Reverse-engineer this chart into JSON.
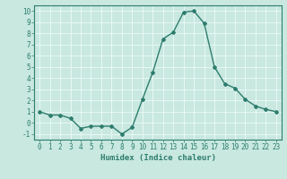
{
  "x": [
    0,
    1,
    2,
    3,
    4,
    5,
    6,
    7,
    8,
    9,
    10,
    11,
    12,
    13,
    14,
    15,
    16,
    17,
    18,
    19,
    20,
    21,
    22,
    23
  ],
  "y": [
    1,
    0.7,
    0.7,
    0.4,
    -0.5,
    -0.3,
    -0.3,
    -0.3,
    -1.0,
    -0.4,
    2.1,
    4.5,
    7.5,
    8.1,
    9.9,
    10.0,
    8.9,
    5.0,
    3.5,
    3.1,
    2.1,
    1.5,
    1.2,
    1.0
  ],
  "line_color": "#2e7d6e",
  "marker": "D",
  "marker_size": 2,
  "bg_color": "#c8e8e0",
  "grid_color": "#e8f8f4",
  "xlabel": "Humidex (Indice chaleur)",
  "ylim": [
    -1.5,
    10.5
  ],
  "xlim": [
    -0.5,
    23.5
  ],
  "yticks": [
    -1,
    0,
    1,
    2,
    3,
    4,
    5,
    6,
    7,
    8,
    9,
    10
  ],
  "xticks": [
    0,
    1,
    2,
    3,
    4,
    5,
    6,
    7,
    8,
    9,
    10,
    11,
    12,
    13,
    14,
    15,
    16,
    17,
    18,
    19,
    20,
    21,
    22,
    23
  ],
  "tick_color": "#2e7d6e",
  "label_color": "#2e7d6e",
  "font_family": "monospace",
  "linewidth": 1.0
}
